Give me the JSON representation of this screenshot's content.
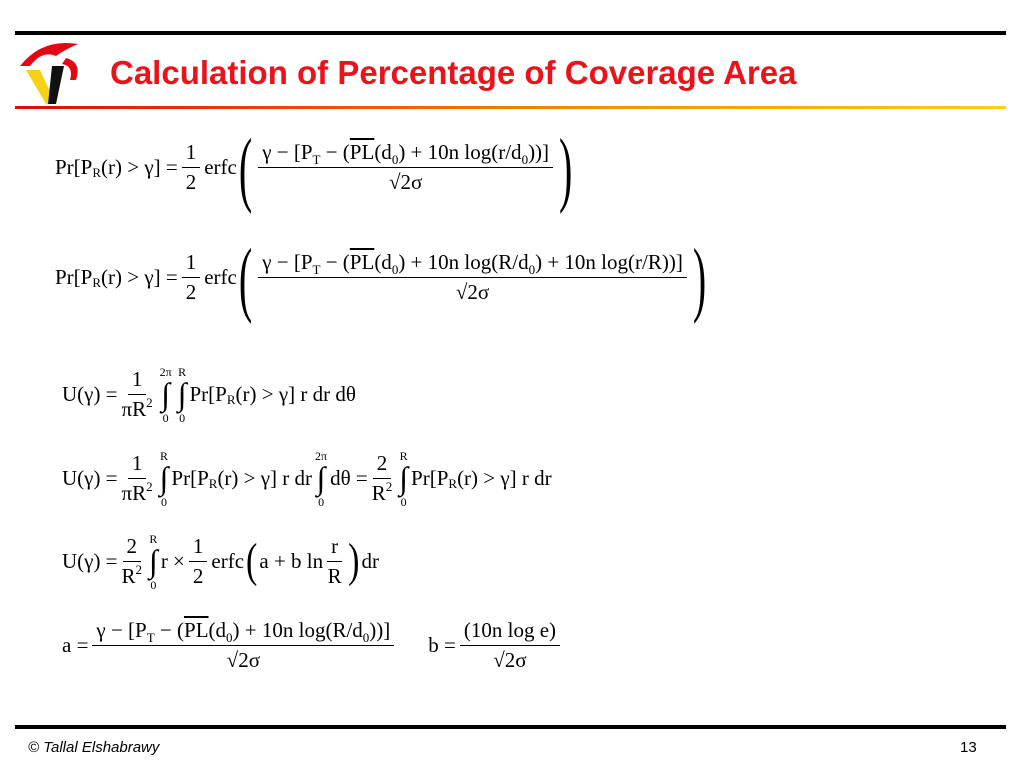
{
  "header": {
    "title": "Calculation of Percentage of Coverage Area"
  },
  "eq1": {
    "lhs": [
      "Pr[P",
      "R",
      "(r) > γ] ="
    ],
    "coef": [
      "1",
      "2"
    ],
    "func": "erfc",
    "paren": [
      "(",
      ")"
    ],
    "num": [
      "γ − [P",
      "T",
      " − (",
      "PL",
      "(d",
      "0",
      ") + 10n log(r/d",
      "0",
      "))]"
    ],
    "den": "√2σ"
  },
  "eq2": {
    "lhs": [
      "Pr[P",
      "R",
      "(r) > γ] ="
    ],
    "coef": [
      "1",
      "2"
    ],
    "func": "erfc",
    "paren": [
      "(",
      ")"
    ],
    "num": [
      "γ − [P",
      "T",
      " − (",
      "PL",
      "(d",
      "0",
      ") + 10n log(R/d",
      "0",
      ") + 10n log(r/R))]"
    ],
    "den": "√2σ"
  },
  "eq3": {
    "lhs": "U(γ) =",
    "frac": {
      "num": "1",
      "den": [
        "πR",
        "2"
      ]
    },
    "ints": [
      {
        "sign": "∫",
        "upper": "2π",
        "lower": "0"
      },
      {
        "sign": "∫",
        "upper": "R",
        "lower": "0"
      }
    ],
    "body": [
      "Pr[P",
      "R",
      "(r) > γ] r dr dθ"
    ]
  },
  "eq4": {
    "lhs": "U(γ) =",
    "frac": {
      "num": "1",
      "den": [
        "πR",
        "2"
      ]
    },
    "int1": {
      "sign": "∫",
      "upper": "R",
      "lower": "0"
    },
    "body1": [
      "Pr[P",
      "R",
      "(r) > γ] r dr"
    ],
    "int2": {
      "sign": "∫",
      "upper": "2π",
      "lower": "0"
    },
    "body2": "dθ =",
    "frac2": {
      "num": "2",
      "den": [
        "R",
        "2"
      ]
    },
    "int3": {
      "sign": "∫",
      "upper": "R",
      "lower": "0"
    },
    "body3": [
      "Pr[P",
      "R",
      "(r) > γ] r dr"
    ]
  },
  "eq5": {
    "lhs": "U(γ) =",
    "frac": {
      "num": "2",
      "den": [
        "R",
        "2"
      ]
    },
    "int": {
      "sign": "∫",
      "upper": "R",
      "lower": "0"
    },
    "mid": "r ×",
    "coef": [
      "1",
      "2"
    ],
    "func": "erfc",
    "paren": [
      "(",
      ")"
    ],
    "arg": "a + b ln",
    "ratio": [
      "r",
      "R"
    ],
    "tail": "dr"
  },
  "eq6": {
    "a": {
      "lhs": "a =",
      "num": [
        "γ − [P",
        "T",
        " − (",
        "PL",
        "(d",
        "0",
        ") + 10n log(R/d",
        "0",
        "))]"
      ],
      "den": "√2σ"
    },
    "b": {
      "lhs": "b =",
      "num": "(10n log e)",
      "den": "√2σ"
    }
  },
  "footer": {
    "author": "© Tallal Elshabrawy",
    "page": "13"
  }
}
